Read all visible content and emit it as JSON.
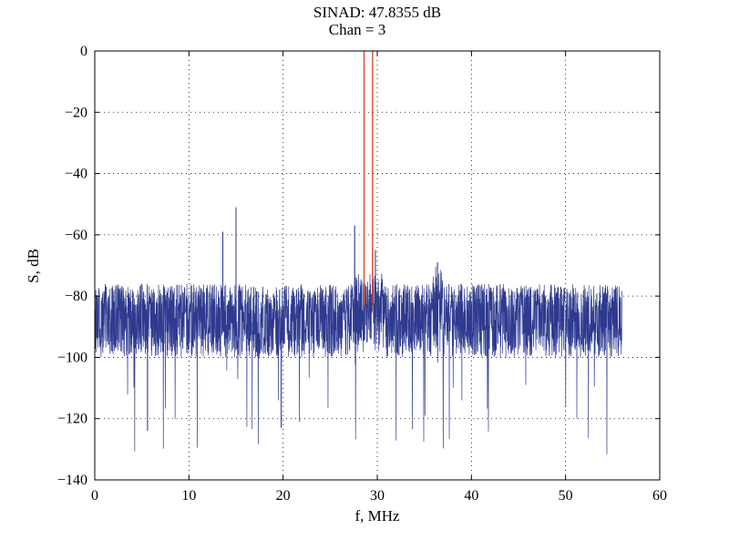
{
  "chart_data": {
    "type": "line",
    "title": "SINAD: 47.8355 dB",
    "subtitle": "Chan = 3",
    "xlabel": "f, MHz",
    "ylabel": "S, dB",
    "xlim": [
      0,
      60
    ],
    "ylim": [
      -140,
      0
    ],
    "xticks": [
      0,
      10,
      20,
      30,
      40,
      50,
      60
    ],
    "yticks": [
      0,
      -20,
      -40,
      -60,
      -80,
      -100,
      -120,
      -140
    ],
    "xtick_labels": [
      "0",
      "10",
      "20",
      "30",
      "40",
      "50",
      "60"
    ],
    "ytick_labels": [
      "0",
      "−20",
      "−40",
      "−60",
      "−80",
      "−100",
      "−120",
      "−140"
    ],
    "grid": true,
    "series": [
      {
        "color": "#2e3a8f",
        "noise_floor": {
          "x_range": [
            0,
            56
          ],
          "mean": -87,
          "upper": -76,
          "lower": -100,
          "deep_dips_to": -124
        },
        "spurs": [
          {
            "x": 13.6,
            "y": -59
          },
          {
            "x": 15.0,
            "y": -51
          },
          {
            "x": 27.6,
            "y": -57
          },
          {
            "x": 28.6,
            "y": -62
          },
          {
            "x": 29.8,
            "y": -65
          },
          {
            "x": 36.4,
            "y": -69
          },
          {
            "x": 5.6,
            "y": -124
          },
          {
            "x": 19.8,
            "y": -123
          }
        ]
      },
      {
        "color": "#d9401f",
        "tones": [
          {
            "x": 28.6,
            "y": 0
          },
          {
            "x": 29.5,
            "y": 0
          }
        ]
      }
    ]
  }
}
